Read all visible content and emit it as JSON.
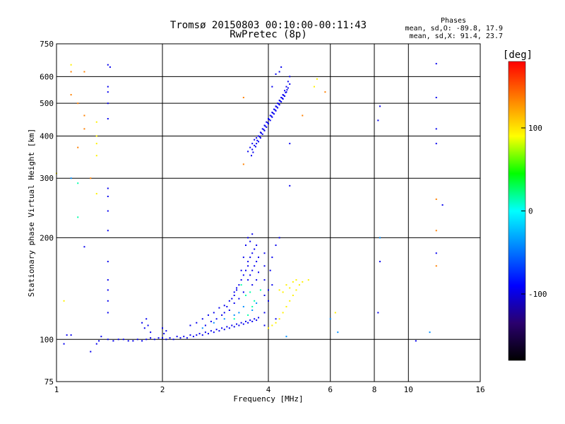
{
  "chart_data": {
    "type": "scatter",
    "title": "Tromsø 20150803 00:10:00-00:11:43",
    "subtitle": "RwPretec (8p)",
    "xlabel": "Frequency [MHz]",
    "ylabel": "Stationary phase Virtual Height [km]",
    "x_scale": "log",
    "y_scale": "log",
    "xlim": [
      1,
      16
    ],
    "ylim": [
      75,
      750
    ],
    "x_ticks": [
      1,
      2,
      4,
      6,
      8,
      10,
      16
    ],
    "y_ticks": [
      75,
      100,
      200,
      300,
      400,
      500,
      600,
      750
    ],
    "grid": true,
    "phases_box": {
      "title": "Phases",
      "line_o": "mean, sd,O: -89.8, 17.9",
      "line_x": "mean, sd,X:  91.4, 23.7"
    },
    "colorbar": {
      "label": "[deg]",
      "range": [
        -180,
        180
      ],
      "ticks": [
        100,
        0,
        -100
      ],
      "colors": [
        "#000000",
        "#2a006e",
        "#0000ff",
        "#0080ff",
        "#00ffff",
        "#00ff00",
        "#ffff00",
        "#ff8000",
        "#ff0000"
      ]
    },
    "series": [
      {
        "phase_deg": -95,
        "points": [
          [
            1.05,
            97
          ],
          [
            1.07,
            103
          ],
          [
            1.1,
            103
          ],
          [
            1.2,
            188
          ],
          [
            1.25,
            92
          ],
          [
            1.3,
            97
          ],
          [
            1.32,
            99
          ],
          [
            1.34,
            102
          ],
          [
            1.4,
            100
          ],
          [
            1.45,
            99
          ],
          [
            1.5,
            100
          ],
          [
            1.55,
            100
          ],
          [
            1.6,
            99
          ],
          [
            1.65,
            99
          ],
          [
            1.7,
            100
          ],
          [
            1.75,
            99
          ],
          [
            1.8,
            100
          ],
          [
            1.85,
            101
          ],
          [
            1.9,
            100
          ],
          [
            1.95,
            101
          ],
          [
            2.0,
            101
          ],
          [
            2.05,
            100
          ],
          [
            2.1,
            101
          ],
          [
            2.15,
            100
          ],
          [
            2.2,
            102
          ],
          [
            2.25,
            101
          ],
          [
            2.3,
            102
          ],
          [
            2.35,
            101
          ],
          [
            2.4,
            103
          ],
          [
            2.45,
            102
          ],
          [
            2.5,
            103
          ],
          [
            2.55,
            104
          ],
          [
            2.6,
            103
          ],
          [
            2.65,
            105
          ],
          [
            2.7,
            104
          ],
          [
            2.75,
            106
          ],
          [
            2.8,
            105
          ],
          [
            2.85,
            107
          ],
          [
            2.9,
            106
          ],
          [
            2.95,
            108
          ],
          [
            3.0,
            107
          ],
          [
            3.05,
            109
          ],
          [
            3.1,
            108
          ],
          [
            3.15,
            110
          ],
          [
            3.2,
            109
          ],
          [
            3.25,
            111
          ],
          [
            3.3,
            110
          ],
          [
            3.35,
            112
          ],
          [
            3.4,
            111
          ],
          [
            3.45,
            113
          ],
          [
            3.5,
            112
          ],
          [
            3.55,
            114
          ],
          [
            3.6,
            113
          ],
          [
            3.65,
            115
          ],
          [
            3.7,
            114
          ],
          [
            3.75,
            116
          ],
          [
            2.4,
            110
          ],
          [
            2.5,
            112
          ],
          [
            2.6,
            115
          ],
          [
            2.7,
            118
          ],
          [
            2.8,
            120
          ],
          [
            2.9,
            124
          ],
          [
            3.0,
            126
          ],
          [
            3.0,
            120
          ],
          [
            3.1,
            130
          ],
          [
            3.1,
            122
          ],
          [
            3.2,
            135
          ],
          [
            3.2,
            128
          ],
          [
            3.25,
            140
          ],
          [
            3.3,
            145
          ],
          [
            3.3,
            132
          ],
          [
            3.35,
            150
          ],
          [
            3.4,
            155
          ],
          [
            3.4,
            138
          ],
          [
            3.45,
            160
          ],
          [
            3.5,
            150
          ],
          [
            3.5,
            165
          ],
          [
            3.5,
            170
          ],
          [
            3.55,
            175
          ],
          [
            3.55,
            155
          ],
          [
            3.6,
            180
          ],
          [
            3.6,
            160
          ],
          [
            3.6,
            145
          ],
          [
            3.65,
            185
          ],
          [
            3.65,
            165
          ],
          [
            3.7,
            190
          ],
          [
            3.7,
            170
          ],
          [
            3.7,
            150
          ],
          [
            3.75,
            175
          ],
          [
            3.75,
            158
          ],
          [
            3.5,
            200
          ],
          [
            3.55,
            195
          ],
          [
            3.6,
            205
          ],
          [
            3.45,
            190
          ],
          [
            3.4,
            175
          ],
          [
            3.35,
            160
          ],
          [
            3.25,
            142
          ],
          [
            3.2,
            138
          ],
          [
            3.15,
            132
          ],
          [
            3.05,
            125
          ],
          [
            2.95,
            118
          ],
          [
            2.85,
            115
          ],
          [
            2.75,
            113
          ],
          [
            2.65,
            110
          ],
          [
            3.9,
            110
          ],
          [
            3.9,
            120
          ],
          [
            3.9,
            135
          ],
          [
            3.9,
            150
          ],
          [
            3.9,
            165
          ],
          [
            3.9,
            180
          ],
          [
            4.0,
            140
          ],
          [
            4.05,
            160
          ],
          [
            4.1,
            175
          ],
          [
            4.2,
            190
          ],
          [
            4.3,
            200
          ],
          [
            4.2,
            115
          ],
          [
            4.0,
            130
          ],
          [
            4.1,
            145
          ],
          [
            1.75,
            112
          ],
          [
            1.78,
            108
          ],
          [
            1.8,
            115
          ],
          [
            1.82,
            110
          ],
          [
            1.85,
            105
          ],
          [
            2.0,
            108
          ],
          [
            2.02,
            104
          ],
          [
            2.05,
            106
          ],
          [
            3.5,
            360
          ],
          [
            3.55,
            370
          ],
          [
            3.6,
            380
          ],
          [
            3.6,
            365
          ],
          [
            3.65,
            390
          ],
          [
            3.65,
            375
          ],
          [
            3.7,
            395
          ],
          [
            3.7,
            380
          ],
          [
            3.75,
            400
          ],
          [
            3.75,
            385
          ],
          [
            3.8,
            410
          ],
          [
            3.8,
            395
          ],
          [
            3.85,
            420
          ],
          [
            3.85,
            405
          ],
          [
            3.9,
            430
          ],
          [
            3.9,
            415
          ],
          [
            3.95,
            440
          ],
          [
            3.95,
            425
          ],
          [
            4.0,
            450
          ],
          [
            4.0,
            435
          ],
          [
            4.05,
            460
          ],
          [
            4.05,
            445
          ],
          [
            4.1,
            470
          ],
          [
            4.1,
            455
          ],
          [
            4.15,
            480
          ],
          [
            4.15,
            465
          ],
          [
            4.2,
            490
          ],
          [
            4.2,
            475
          ],
          [
            4.25,
            500
          ],
          [
            4.25,
            485
          ],
          [
            4.3,
            510
          ],
          [
            4.3,
            495
          ],
          [
            4.35,
            520
          ],
          [
            4.35,
            505
          ],
          [
            4.4,
            530
          ],
          [
            4.4,
            515
          ],
          [
            4.45,
            545
          ],
          [
            4.45,
            525
          ],
          [
            4.5,
            560
          ],
          [
            4.5,
            540
          ],
          [
            4.55,
            580
          ],
          [
            4.55,
            555
          ],
          [
            4.6,
            600
          ],
          [
            4.6,
            570
          ],
          [
            4.3,
            620
          ],
          [
            4.35,
            640
          ],
          [
            4.2,
            610
          ],
          [
            4.1,
            560
          ],
          [
            3.58,
            350
          ],
          [
            3.62,
            358
          ],
          [
            3.68,
            372
          ],
          [
            3.72,
            388
          ],
          [
            3.78,
            398
          ],
          [
            3.82,
            408
          ],
          [
            3.88,
            418
          ],
          [
            3.92,
            428
          ],
          [
            3.98,
            438
          ],
          [
            4.02,
            448
          ],
          [
            4.08,
            458
          ],
          [
            4.12,
            468
          ],
          [
            4.18,
            478
          ],
          [
            4.22,
            488
          ],
          [
            4.28,
            498
          ],
          [
            4.32,
            508
          ],
          [
            4.38,
            518
          ],
          [
            4.42,
            528
          ],
          [
            4.48,
            538
          ],
          [
            4.52,
            548
          ],
          [
            1.4,
            210
          ],
          [
            1.4,
            170
          ],
          [
            1.4,
            150
          ],
          [
            1.4,
            140
          ],
          [
            1.4,
            130
          ],
          [
            1.4,
            120
          ],
          [
            1.4,
            240
          ],
          [
            1.4,
            265
          ],
          [
            1.4,
            280
          ],
          [
            1.4,
            450
          ],
          [
            1.4,
            500
          ],
          [
            1.4,
            540
          ],
          [
            1.4,
            560
          ],
          [
            1.4,
            650
          ],
          [
            1.42,
            640
          ],
          [
            8.2,
            120
          ],
          [
            8.3,
            170
          ],
          [
            8.3,
            490
          ],
          [
            8.2,
            445
          ],
          [
            10.5,
            99
          ],
          [
            12.0,
            180
          ],
          [
            12.0,
            380
          ],
          [
            12.0,
            420
          ],
          [
            12.0,
            520
          ],
          [
            12.0,
            655
          ],
          [
            12.5,
            250
          ],
          [
            4.6,
            380
          ],
          [
            4.6,
            285
          ]
        ]
      },
      {
        "phase_deg": -40,
        "points": [
          [
            2.6,
            108
          ],
          [
            2.8,
            112
          ],
          [
            3.0,
            115
          ],
          [
            3.2,
            118
          ],
          [
            3.3,
            120
          ],
          [
            3.4,
            125
          ],
          [
            3.6,
            122
          ],
          [
            3.7,
            128
          ],
          [
            1.1,
            300
          ],
          [
            4.5,
            102
          ],
          [
            6.0,
            115
          ],
          [
            6.3,
            105
          ],
          [
            8.3,
            200
          ],
          [
            11.5,
            105
          ]
        ]
      },
      {
        "phase_deg": 95,
        "points": [
          [
            4.0,
            108
          ],
          [
            4.1,
            110
          ],
          [
            4.2,
            112
          ],
          [
            4.3,
            115
          ],
          [
            4.4,
            120
          ],
          [
            4.5,
            125
          ],
          [
            4.6,
            130
          ],
          [
            4.7,
            135
          ],
          [
            4.8,
            140
          ],
          [
            4.9,
            145
          ],
          [
            5.0,
            148
          ],
          [
            4.5,
            145
          ],
          [
            4.6,
            142
          ],
          [
            4.7,
            148
          ],
          [
            4.8,
            150
          ],
          [
            5.2,
            150
          ],
          [
            4.3,
            140
          ],
          [
            4.4,
            138
          ],
          [
            1.3,
            440
          ],
          [
            1.3,
            400
          ],
          [
            1.3,
            380
          ],
          [
            1.3,
            350
          ],
          [
            1.3,
            270
          ],
          [
            1.1,
            650
          ],
          [
            5.5,
            590
          ],
          [
            5.4,
            560
          ],
          [
            1.0,
            310
          ],
          [
            1.05,
            130
          ],
          [
            6.2,
            120
          ]
        ]
      },
      {
        "phase_deg": 135,
        "points": [
          [
            1.1,
            620
          ],
          [
            1.2,
            620
          ],
          [
            1.1,
            530
          ],
          [
            1.15,
            500
          ],
          [
            1.2,
            460
          ],
          [
            1.2,
            420
          ],
          [
            1.15,
            370
          ],
          [
            1.25,
            300
          ],
          [
            3.4,
            520
          ],
          [
            3.4,
            330
          ],
          [
            5.0,
            460
          ],
          [
            5.8,
            540
          ],
          [
            12.0,
            260
          ],
          [
            12.0,
            165
          ],
          [
            12.0,
            210
          ]
        ]
      },
      {
        "phase_deg": 15,
        "points": [
          [
            3.45,
            135
          ],
          [
            3.55,
            138
          ],
          [
            3.65,
            130
          ],
          [
            3.35,
            145
          ],
          [
            3.8,
            140
          ],
          [
            3.2,
            115
          ],
          [
            1.15,
            230
          ],
          [
            1.15,
            290
          ],
          [
            3.6,
            125
          ],
          [
            3.5,
            118
          ]
        ]
      }
    ]
  }
}
